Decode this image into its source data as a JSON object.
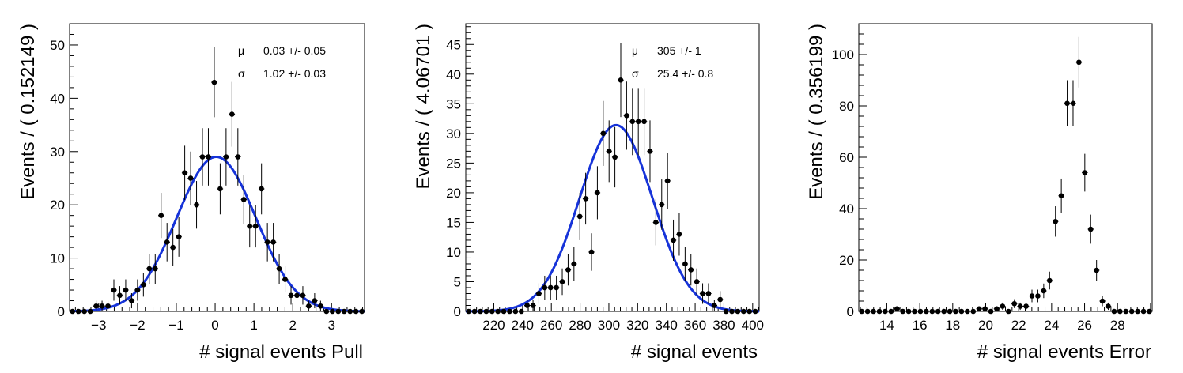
{
  "chart_data": [
    {
      "type": "scatter",
      "fit": "gaussian",
      "xlabel": "# signal events Pull",
      "ylabel": "Events / ( 0.152149 )",
      "xlim": [
        -3.75,
        3.85
      ],
      "ylim": [
        0,
        54
      ],
      "xticks": [
        "−3",
        "−2",
        "−1",
        "0",
        "1",
        "2",
        "3"
      ],
      "yticks": [
        "0",
        "10",
        "20",
        "30",
        "40",
        "50"
      ],
      "stats": [
        {
          "symbol": "μ",
          "text": "0.03 +/- 0.05"
        },
        {
          "symbol": "σ",
          "text": "1.02 +/- 0.03"
        }
      ],
      "fit_params": {
        "mean": 0.03,
        "sigma": 1.02,
        "amplitude": 29
      },
      "bin_width": 0.152149,
      "y_start": -3.674,
      "values": [
        0,
        0,
        0,
        0,
        1,
        1,
        1,
        4,
        3,
        4,
        2,
        4,
        5,
        8,
        8,
        18,
        13,
        12,
        14,
        26,
        25,
        20,
        29,
        29,
        43,
        23,
        29,
        37,
        29,
        21,
        16,
        16,
        23,
        13,
        13,
        8,
        6,
        3,
        3,
        3,
        1,
        2,
        1,
        0,
        0,
        0,
        0,
        0,
        0,
        0
      ]
    },
    {
      "type": "scatter",
      "fit": "gaussian",
      "xlabel": "# signal events",
      "ylabel": "Events / ( 4.06701 )",
      "xlim": [
        200.5,
        404.5
      ],
      "ylim": [
        0,
        48.5
      ],
      "xticks": [
        "220",
        "240",
        "260",
        "280",
        "300",
        "320",
        "340",
        "360",
        "380",
        "400"
      ],
      "yticks": [
        "0",
        "5",
        "10",
        "15",
        "20",
        "25",
        "30",
        "35",
        "40",
        "45"
      ],
      "stats": [
        {
          "symbol": "μ",
          "text": "305 +/- 1"
        },
        {
          "symbol": "σ",
          "text": "25.4 +/- 0.8"
        }
      ],
      "fit_params": {
        "mean": 305,
        "sigma": 25.4,
        "amplitude": 31.4
      },
      "bin_width": 4.06701,
      "y_start": 202.53,
      "values": [
        0,
        0,
        0,
        0,
        0,
        0,
        0,
        0,
        0,
        0,
        1,
        1,
        3,
        4,
        4,
        4,
        5,
        7,
        8,
        16,
        19,
        10,
        20,
        30,
        27,
        26,
        39,
        33,
        32,
        32,
        32,
        27,
        15,
        18,
        22,
        12,
        13,
        8,
        7,
        5,
        3,
        3,
        1,
        2,
        0,
        0,
        0,
        0,
        0,
        0
      ]
    },
    {
      "type": "scatter",
      "xlabel": "# signal events Error",
      "ylabel": "Events / ( 0.356199 )",
      "xlim": [
        12.3,
        30.1
      ],
      "ylim": [
        0,
        112
      ],
      "xticks": [
        "14",
        "16",
        "18",
        "20",
        "22",
        "24",
        "26",
        "28"
      ],
      "yticks": [
        "0",
        "20",
        "40",
        "60",
        "80",
        "100"
      ],
      "stats": [],
      "bin_width": 0.356199,
      "y_start": 12.478,
      "values": [
        0,
        0,
        0,
        0,
        0,
        0,
        1,
        0,
        0,
        0,
        0,
        0,
        0,
        0,
        0,
        0,
        0,
        0,
        0,
        0,
        1,
        1,
        0,
        1,
        2,
        0,
        3,
        2,
        2,
        6,
        6,
        8,
        12,
        35,
        45,
        81,
        81,
        97,
        54,
        32,
        16,
        4,
        2,
        0,
        0,
        0,
        0,
        0,
        0,
        0
      ]
    }
  ]
}
